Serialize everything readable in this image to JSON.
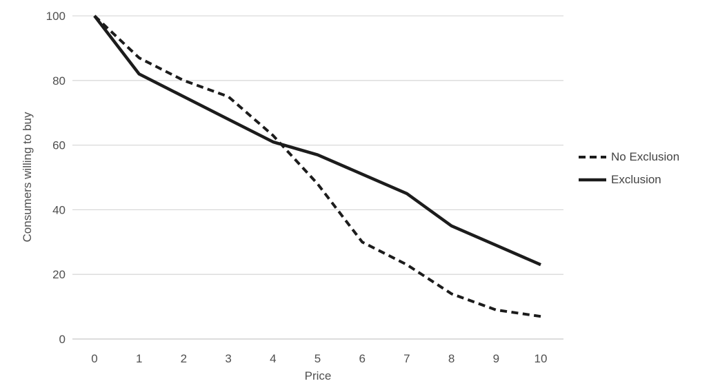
{
  "chart_data": {
    "type": "line",
    "title": "",
    "xlabel": "Price",
    "ylabel": "Consumers willing to buy",
    "x": [
      0,
      1,
      2,
      3,
      4,
      5,
      6,
      7,
      8,
      9,
      10
    ],
    "series": [
      {
        "name": "No Exclusion",
        "line_style": "dashed",
        "color": "#1c1c1c",
        "values": [
          100,
          87,
          80,
          75,
          63,
          48,
          30,
          23,
          14,
          9,
          7
        ]
      },
      {
        "name": "Exclusion",
        "line_style": "solid",
        "color": "#1c1c1c",
        "values": [
          100,
          82,
          75,
          68,
          61,
          57,
          51,
          45,
          35,
          29,
          23
        ]
      }
    ],
    "xticks": [
      "0",
      "1",
      "2",
      "3",
      "4",
      "5",
      "6",
      "7",
      "8",
      "9",
      "10"
    ],
    "yticks": [
      "0",
      "20",
      "40",
      "60",
      "80",
      "100"
    ],
    "xlim": [
      0,
      10
    ],
    "ylim": [
      0,
      100
    ],
    "grid": "horizontal",
    "legend_position": "center-right",
    "legend": [
      "No Exclusion",
      "Exclusion"
    ],
    "colors": {
      "line": "#1c1c1c",
      "gridline": "#d9d9d9",
      "baseline": "#c7c7c7",
      "text": "#4f4f4f",
      "background": "#ffffff"
    }
  }
}
